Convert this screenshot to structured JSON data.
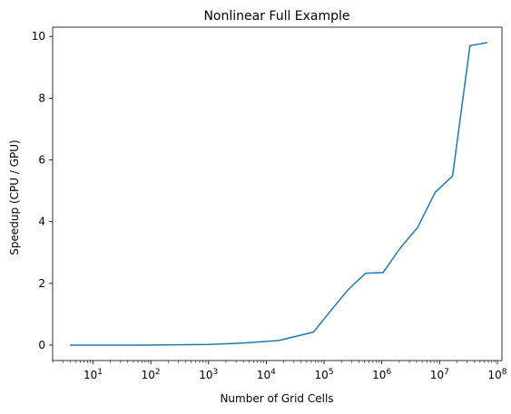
{
  "chart_data": {
    "type": "line",
    "title": "Nonlinear Full Example",
    "xlabel": "Number of Grid Cells",
    "ylabel": "Speedup (CPU / GPU)",
    "xscale": "log",
    "xlim": [
      2.0,
      120000000
    ],
    "ylim": [
      -0.5,
      10.3
    ],
    "grid": false,
    "line_color": "#1f77b4",
    "x_ticks": [
      {
        "value": 10,
        "label_base": "10",
        "label_exp": "1"
      },
      {
        "value": 100,
        "label_base": "10",
        "label_exp": "2"
      },
      {
        "value": 1000,
        "label_base": "10",
        "label_exp": "3"
      },
      {
        "value": 10000,
        "label_base": "10",
        "label_exp": "4"
      },
      {
        "value": 100000,
        "label_base": "10",
        "label_exp": "5"
      },
      {
        "value": 1000000,
        "label_base": "10",
        "label_exp": "6"
      },
      {
        "value": 10000000,
        "label_base": "10",
        "label_exp": "7"
      },
      {
        "value": 100000000,
        "label_base": "10",
        "label_exp": "8"
      }
    ],
    "y_ticks": [
      {
        "value": 0,
        "label": "0"
      },
      {
        "value": 2,
        "label": "2"
      },
      {
        "value": 4,
        "label": "4"
      },
      {
        "value": 6,
        "label": "6"
      },
      {
        "value": 8,
        "label": "8"
      },
      {
        "value": 10,
        "label": "10"
      }
    ],
    "series": [
      {
        "x": [
          4,
          16,
          64,
          256,
          1024,
          4096,
          16384,
          65536,
          131072,
          262144,
          524288,
          1048576,
          2097152,
          4194304,
          8388608,
          16777216,
          33554432,
          67108864
        ],
        "y": [
          0.0,
          0.0,
          0.0,
          0.01,
          0.02,
          0.07,
          0.15,
          0.42,
          1.12,
          1.8,
          2.33,
          2.35,
          3.15,
          3.82,
          4.95,
          5.48,
          9.7,
          9.8
        ]
      }
    ]
  }
}
